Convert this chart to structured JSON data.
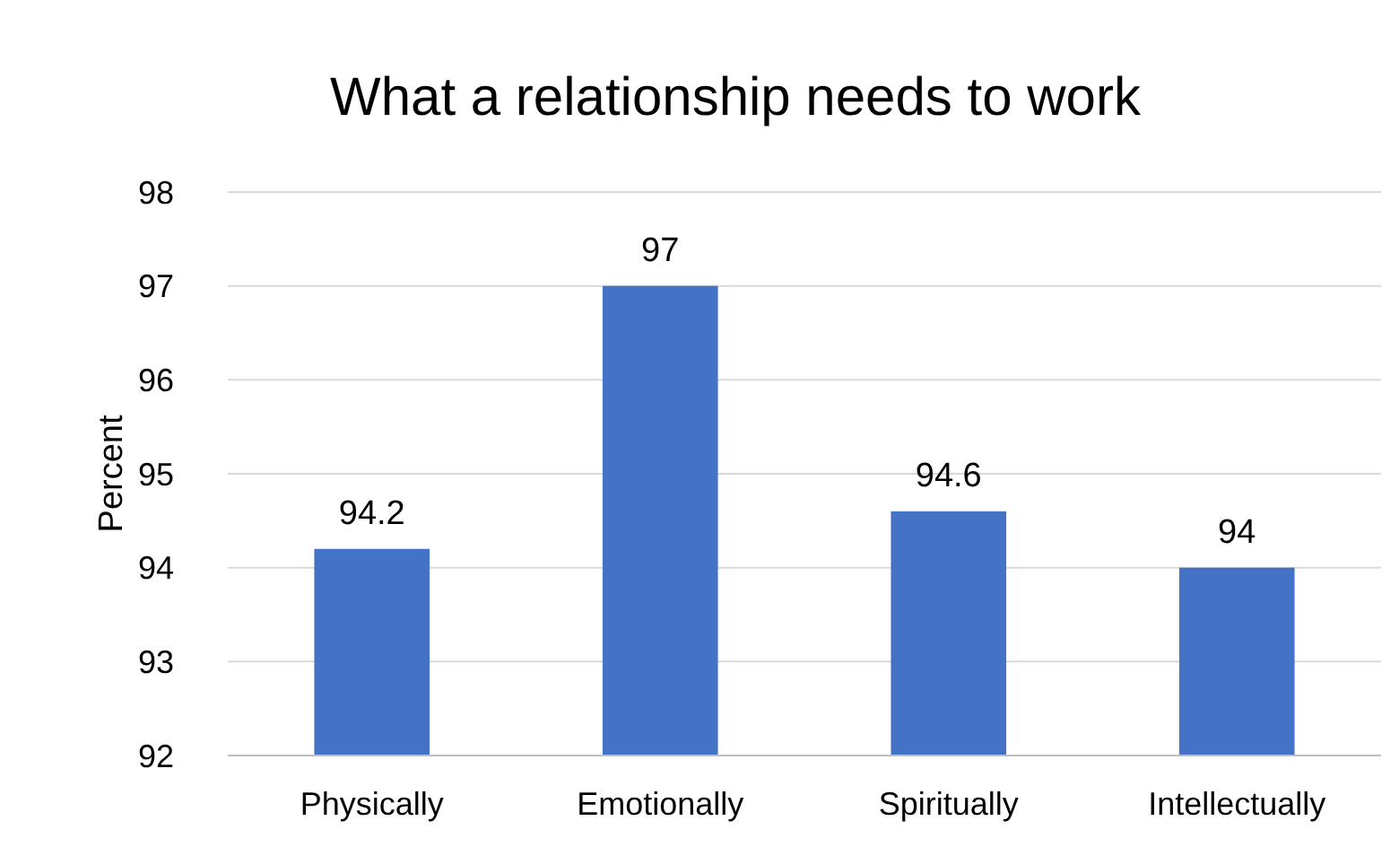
{
  "chart_data": {
    "type": "bar",
    "title": "What a relationship needs to work",
    "ylabel": "Percent",
    "categories": [
      "Physically",
      "Emotionally",
      "Spiritually",
      "Intellectually"
    ],
    "values": [
      94.2,
      97,
      94.6,
      94
    ],
    "color": "#4472c4",
    "ylim": [
      92,
      98
    ],
    "yticks": [
      92,
      93,
      94,
      95,
      96,
      97,
      98
    ],
    "grid": "y",
    "data_labels": true
  }
}
